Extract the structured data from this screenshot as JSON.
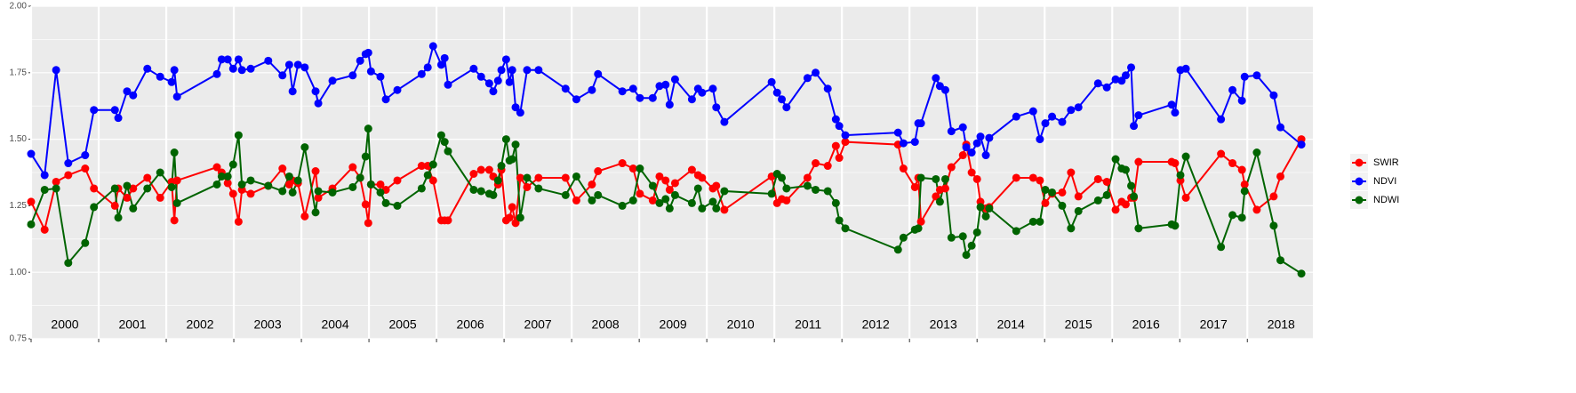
{
  "chart_data": {
    "type": "line",
    "x": [
      2000.0,
      2000.2,
      2000.37,
      2000.55,
      2000.8,
      2000.93,
      2001.24,
      2001.29,
      2001.42,
      2001.51,
      2001.72,
      2001.91,
      2002.08,
      2002.12,
      2002.16,
      2002.75,
      2002.82,
      2002.91,
      2002.99,
      2003.07,
      2003.12,
      2003.25,
      2003.51,
      2003.72,
      2003.82,
      2003.87,
      2003.95,
      2004.05,
      2004.21,
      2004.25,
      2004.46,
      2004.76,
      2004.87,
      2004.95,
      2004.99,
      2005.03,
      2005.17,
      2005.25,
      2005.42,
      2005.78,
      2005.87,
      2005.95,
      2006.07,
      2006.12,
      2006.17,
      2006.55,
      2006.66,
      2006.78,
      2006.84,
      2006.91,
      2006.96,
      2007.03,
      2007.08,
      2007.12,
      2007.17,
      2007.24,
      2007.34,
      2007.51,
      2007.91,
      2008.07,
      2008.3,
      2008.39,
      2008.75,
      2008.91,
      2009.01,
      2009.2,
      2009.3,
      2009.39,
      2009.45,
      2009.53,
      2009.78,
      2009.87,
      2009.93,
      2010.09,
      2010.14,
      2010.26,
      2010.96,
      2011.04,
      2011.11,
      2011.18,
      2011.49,
      2011.61,
      2011.79,
      2011.91,
      2011.96,
      2012.05,
      2012.83,
      2012.91,
      2013.08,
      2013.13,
      2013.17,
      2013.39,
      2013.45,
      2013.53,
      2013.62,
      2013.79,
      2013.84,
      2013.92,
      2014.0,
      2014.05,
      2014.13,
      2014.18,
      2014.58,
      2014.83,
      2014.93,
      2015.01,
      2015.11,
      2015.26,
      2015.39,
      2015.5,
      2015.79,
      2015.92,
      2016.05,
      2016.14,
      2016.2,
      2016.28,
      2016.32,
      2016.39,
      2016.88,
      2016.93,
      2017.01,
      2017.09,
      2017.61,
      2017.78,
      2017.92,
      2017.96,
      2018.14,
      2018.39,
      2018.49,
      2018.8
    ],
    "series": [
      {
        "name": "SWIR",
        "color": "#ff0000",
        "values": [
          1.265,
          1.16,
          1.34,
          1.365,
          1.39,
          1.315,
          1.25,
          1.315,
          1.28,
          1.315,
          1.355,
          1.28,
          1.34,
          1.195,
          1.345,
          1.395,
          1.375,
          1.335,
          1.295,
          1.19,
          1.31,
          1.295,
          1.325,
          1.39,
          1.33,
          1.345,
          1.335,
          1.21,
          1.38,
          1.28,
          1.315,
          1.395,
          1.355,
          1.255,
          1.185,
          1.33,
          1.33,
          1.31,
          1.345,
          1.4,
          1.4,
          1.345,
          1.195,
          1.195,
          1.195,
          1.37,
          1.385,
          1.385,
          1.36,
          1.33,
          1.385,
          1.195,
          1.205,
          1.245,
          1.185,
          1.355,
          1.32,
          1.355,
          1.355,
          1.27,
          1.33,
          1.38,
          1.41,
          1.39,
          1.295,
          1.27,
          1.36,
          1.345,
          1.31,
          1.335,
          1.385,
          1.365,
          1.355,
          1.315,
          1.325,
          1.235,
          1.36,
          1.26,
          1.275,
          1.27,
          1.355,
          1.41,
          1.4,
          1.475,
          1.43,
          1.49,
          1.48,
          1.39,
          1.32,
          1.355,
          1.19,
          1.285,
          1.31,
          1.315,
          1.395,
          1.44,
          1.48,
          1.375,
          1.35,
          1.265,
          1.24,
          1.245,
          1.355,
          1.355,
          1.345,
          1.26,
          1.295,
          1.3,
          1.375,
          1.285,
          1.35,
          1.34,
          1.235,
          1.265,
          1.255,
          1.28,
          1.28,
          1.415,
          1.415,
          1.41,
          1.345,
          1.28,
          1.445,
          1.41,
          1.385,
          1.33,
          1.235,
          1.285,
          1.36,
          1.5
        ]
      },
      {
        "name": "NDVI",
        "color": "#0000ff",
        "values": [
          1.445,
          1.365,
          1.76,
          1.41,
          1.44,
          1.61,
          1.61,
          1.58,
          1.68,
          1.665,
          1.765,
          1.735,
          1.715,
          1.76,
          1.66,
          1.745,
          1.8,
          1.8,
          1.765,
          1.8,
          1.76,
          1.765,
          1.795,
          1.74,
          1.78,
          1.68,
          1.78,
          1.77,
          1.68,
          1.635,
          1.72,
          1.74,
          1.795,
          1.82,
          1.825,
          1.755,
          1.735,
          1.65,
          1.685,
          1.745,
          1.77,
          1.85,
          1.78,
          1.805,
          1.705,
          1.765,
          1.735,
          1.71,
          1.68,
          1.72,
          1.76,
          1.8,
          1.715,
          1.76,
          1.62,
          1.6,
          1.76,
          1.76,
          1.69,
          1.65,
          1.685,
          1.745,
          1.68,
          1.69,
          1.655,
          1.655,
          1.7,
          1.705,
          1.63,
          1.725,
          1.65,
          1.69,
          1.675,
          1.69,
          1.62,
          1.565,
          1.715,
          1.675,
          1.65,
          1.62,
          1.73,
          1.75,
          1.69,
          1.575,
          1.55,
          1.515,
          1.525,
          1.485,
          1.49,
          1.56,
          1.56,
          1.73,
          1.7,
          1.685,
          1.53,
          1.545,
          1.47,
          1.45,
          1.485,
          1.51,
          1.44,
          1.505,
          1.585,
          1.605,
          1.5,
          1.56,
          1.585,
          1.565,
          1.61,
          1.62,
          1.71,
          1.695,
          1.725,
          1.72,
          1.74,
          1.77,
          1.55,
          1.59,
          1.63,
          1.6,
          1.76,
          1.765,
          1.575,
          1.685,
          1.645,
          1.735,
          1.74,
          1.665,
          1.545,
          1.48
        ]
      },
      {
        "name": "NDWI",
        "color": "#006400",
        "values": [
          1.18,
          1.31,
          1.315,
          1.035,
          1.11,
          1.245,
          1.315,
          1.205,
          1.325,
          1.24,
          1.315,
          1.375,
          1.32,
          1.45,
          1.26,
          1.33,
          1.36,
          1.36,
          1.405,
          1.515,
          1.33,
          1.345,
          1.325,
          1.305,
          1.36,
          1.3,
          1.345,
          1.47,
          1.225,
          1.305,
          1.3,
          1.32,
          1.355,
          1.435,
          1.54,
          1.33,
          1.3,
          1.26,
          1.25,
          1.315,
          1.365,
          1.405,
          1.515,
          1.49,
          1.455,
          1.31,
          1.305,
          1.295,
          1.29,
          1.345,
          1.4,
          1.5,
          1.42,
          1.425,
          1.48,
          1.205,
          1.355,
          1.315,
          1.29,
          1.36,
          1.27,
          1.29,
          1.25,
          1.27,
          1.39,
          1.325,
          1.26,
          1.275,
          1.24,
          1.29,
          1.26,
          1.315,
          1.24,
          1.265,
          1.24,
          1.305,
          1.295,
          1.37,
          1.355,
          1.315,
          1.325,
          1.31,
          1.305,
          1.26,
          1.195,
          1.165,
          1.085,
          1.13,
          1.16,
          1.165,
          1.355,
          1.35,
          1.265,
          1.35,
          1.13,
          1.135,
          1.065,
          1.1,
          1.15,
          1.245,
          1.21,
          1.24,
          1.155,
          1.19,
          1.19,
          1.31,
          1.3,
          1.25,
          1.165,
          1.23,
          1.27,
          1.29,
          1.425,
          1.39,
          1.385,
          1.325,
          1.285,
          1.165,
          1.18,
          1.175,
          1.365,
          1.435,
          1.095,
          1.215,
          1.205,
          1.305,
          1.45,
          1.175,
          1.045,
          0.995
        ]
      }
    ],
    "xlim": [
      2000,
      2018.97
    ],
    "xticks": [
      2000,
      2001,
      2002,
      2003,
      2004,
      2005,
      2006,
      2007,
      2008,
      2009,
      2010,
      2011,
      2012,
      2013,
      2014,
      2015,
      2016,
      2017,
      2018
    ],
    "year_labels": [
      {
        "value": 2000.5,
        "label": "2000"
      },
      {
        "value": 2001.5,
        "label": "2001"
      },
      {
        "value": 2002.5,
        "label": "2002"
      },
      {
        "value": 2003.5,
        "label": "2003"
      },
      {
        "value": 2004.5,
        "label": "2004"
      },
      {
        "value": 2005.5,
        "label": "2005"
      },
      {
        "value": 2006.5,
        "label": "2006"
      },
      {
        "value": 2007.5,
        "label": "2007"
      },
      {
        "value": 2008.5,
        "label": "2008"
      },
      {
        "value": 2009.5,
        "label": "2009"
      },
      {
        "value": 2010.5,
        "label": "2010"
      },
      {
        "value": 2011.5,
        "label": "2011"
      },
      {
        "value": 2012.5,
        "label": "2012"
      },
      {
        "value": 2013.5,
        "label": "2013"
      },
      {
        "value": 2014.5,
        "label": "2014"
      },
      {
        "value": 2015.5,
        "label": "2015"
      },
      {
        "value": 2016.5,
        "label": "2016"
      },
      {
        "value": 2017.5,
        "label": "2017"
      },
      {
        "value": 2018.5,
        "label": "2018"
      }
    ],
    "ylim": [
      0.75,
      2.0
    ],
    "yticks": [
      {
        "value": 0.75,
        "label": "0.75"
      },
      {
        "value": 1.0,
        "label": "1.00"
      },
      {
        "value": 1.25,
        "label": "1.25"
      },
      {
        "value": 1.5,
        "label": "1.50"
      },
      {
        "value": 1.75,
        "label": "1.75"
      },
      {
        "value": 2.0,
        "label": "2.00"
      }
    ],
    "yminor": [
      0.875,
      1.125,
      1.375,
      1.625,
      1.875
    ],
    "grid": true,
    "legend": "right"
  }
}
